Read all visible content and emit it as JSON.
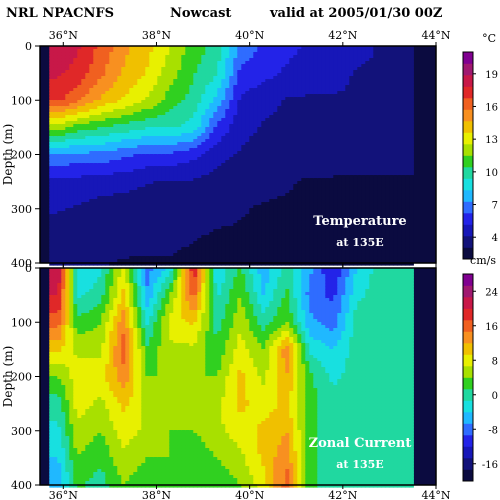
{
  "header": {
    "model": "NRL NPACNFS",
    "product": "Nowcast",
    "valid": "valid at 2005/01/30 00Z"
  },
  "chart_data": [
    {
      "type": "heatmap",
      "title": "Temperature",
      "subtitle": "at 135E",
      "ylabel": "Depth (m)",
      "ylim": [
        400,
        0
      ],
      "yticks": [
        0,
        100,
        200,
        300,
        400
      ],
      "xlabels": [
        "36°N",
        "38°N",
        "40°N",
        "42°N",
        "44°N"
      ],
      "xrange": [
        35.5,
        44
      ],
      "colorbar": {
        "unit": "°C",
        "ticks": [
          19,
          16,
          13,
          10,
          7,
          4
        ],
        "range": [
          2,
          21
        ],
        "colors": [
          "#0b0b40",
          "#12127a",
          "#1717b8",
          "#2323e8",
          "#2f6cff",
          "#20b8ff",
          "#18e0e0",
          "#20d8a0",
          "#30d020",
          "#a8e000",
          "#e8f000",
          "#f0c000",
          "#f89020",
          "#f06020",
          "#e02828",
          "#c81848",
          "#a01870",
          "#800090"
        ]
      },
      "x": [
        35.9,
        36.3,
        36.8,
        37.3,
        37.8,
        38.3,
        38.8,
        39.3,
        39.8,
        40.3,
        40.8,
        41.3,
        41.8,
        42.3,
        42.8,
        43.3
      ],
      "depths": [
        0,
        50,
        100,
        150,
        200,
        250,
        300,
        350,
        400
      ],
      "values": [
        [
          18.5,
          18,
          16.5,
          15,
          14,
          12.5,
          11,
          10,
          7,
          6,
          5.5,
          5,
          4.5,
          4.5,
          4,
          4
        ],
        [
          18,
          17.5,
          16,
          14.5,
          13.5,
          12,
          10.5,
          9.5,
          6,
          5.5,
          5,
          4.5,
          4.5,
          4,
          4,
          4
        ],
        [
          17,
          16,
          14.5,
          13.5,
          12.5,
          11,
          10,
          8,
          5,
          4.5,
          4,
          4,
          4,
          4,
          3.8,
          3.8
        ],
        [
          12,
          11,
          10.5,
          10,
          9.5,
          9.5,
          9,
          6,
          4.5,
          4,
          3.8,
          3.6,
          3.6,
          3.5,
          3.5,
          3.5
        ],
        [
          7,
          7,
          7,
          6.5,
          6,
          6,
          5.5,
          4.5,
          4,
          3.6,
          3.5,
          3.3,
          3.3,
          3.2,
          3.2,
          3.2
        ],
        [
          5,
          4.8,
          4.5,
          4.5,
          4.2,
          4,
          4,
          3.6,
          3.4,
          3.2,
          3.1,
          3,
          3,
          3,
          3,
          3
        ],
        [
          4.2,
          4,
          3.8,
          3.6,
          3.5,
          3.4,
          3.3,
          3.2,
          3.1,
          3,
          3,
          2.9,
          2.9,
          2.9,
          2.9,
          2.9
        ],
        [
          3.6,
          3.5,
          3.4,
          3.3,
          3.2,
          3.2,
          3.1,
          3,
          3,
          2.9,
          2.9,
          2.8,
          2.8,
          2.8,
          2.8,
          2.8
        ],
        [
          3.2,
          3.1,
          3.1,
          3,
          3,
          3,
          2.9,
          2.9,
          2.8,
          2.8,
          2.8,
          2.7,
          2.7,
          2.7,
          2.7,
          2.7
        ]
      ]
    },
    {
      "type": "heatmap",
      "title": "Zonal Current",
      "subtitle": "at 135E",
      "ylabel": "Depth (m)",
      "ylim": [
        400,
        0
      ],
      "yticks": [
        0,
        100,
        200,
        300,
        400
      ],
      "xlabels": [
        "36°N",
        "38°N",
        "40°N",
        "42°N",
        "44°N"
      ],
      "xrange": [
        35.5,
        44
      ],
      "colorbar": {
        "unit": "cm/s",
        "ticks": [
          24,
          16,
          8,
          0,
          -8,
          -16
        ],
        "range": [
          -20,
          28
        ],
        "colors": [
          "#0b0b40",
          "#12127a",
          "#1717b8",
          "#2323e8",
          "#2f6cff",
          "#20b8ff",
          "#18e0e0",
          "#20d8a0",
          "#30d020",
          "#a8e000",
          "#e8f000",
          "#f0c000",
          "#f89020",
          "#f06020",
          "#e02828",
          "#c81848",
          "#a01870",
          "#800090"
        ]
      },
      "x": [
        35.9,
        36.3,
        36.8,
        37.3,
        37.8,
        38.3,
        38.8,
        39.3,
        39.8,
        40.3,
        40.8,
        41.3,
        41.8,
        42.3,
        42.8,
        43.3
      ],
      "depths": [
        0,
        50,
        100,
        150,
        200,
        250,
        300,
        350,
        400
      ],
      "values": [
        [
          22,
          -4,
          -2,
          8,
          -8,
          -3,
          20,
          -4,
          2,
          -6,
          0,
          -6,
          -12,
          -4,
          0,
          0
        ],
        [
          20,
          -2,
          0,
          10,
          -6,
          4,
          16,
          -2,
          4,
          -4,
          2,
          -8,
          -10,
          -2,
          0,
          0
        ],
        [
          16,
          2,
          4,
          14,
          -2,
          8,
          10,
          0,
          6,
          0,
          4,
          -6,
          -8,
          0,
          0,
          0
        ],
        [
          10,
          6,
          6,
          16,
          2,
          6,
          6,
          2,
          8,
          4,
          14,
          -2,
          -4,
          0,
          0,
          0
        ],
        [
          4,
          8,
          8,
          14,
          4,
          4,
          4,
          4,
          10,
          6,
          12,
          2,
          -2,
          0,
          0,
          0
        ],
        [
          0,
          8,
          6,
          10,
          6,
          4,
          4,
          6,
          10,
          8,
          10,
          2,
          0,
          0,
          0,
          0
        ],
        [
          -2,
          6,
          4,
          8,
          6,
          4,
          4,
          6,
          8,
          10,
          12,
          2,
          0,
          0,
          0,
          0
        ],
        [
          -4,
          4,
          2,
          6,
          4,
          4,
          2,
          4,
          6,
          10,
          14,
          2,
          0,
          0,
          0,
          0
        ],
        [
          -6,
          2,
          0,
          4,
          2,
          2,
          2,
          2,
          4,
          8,
          16,
          2,
          0,
          0,
          0,
          0
        ]
      ]
    }
  ]
}
